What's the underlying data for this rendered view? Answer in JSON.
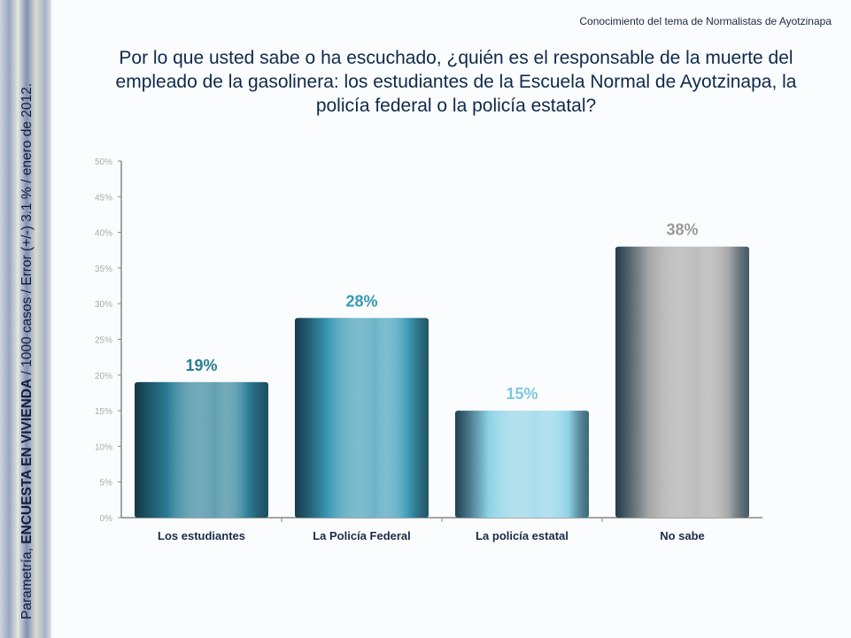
{
  "sidebar": {
    "source_prefix": "Parametría, ",
    "source_bold": "ENCUESTA EN VIVIENDA",
    "source_suffix": " / 1000 casos / Error (+/-) 3.1 % / enero de 2012."
  },
  "header": {
    "topic": "Conocimiento del tema de Normalistas de Ayotzinapa"
  },
  "chart_data": {
    "type": "bar",
    "title": "Por lo que usted sabe o ha escuchado, ¿quién es el responsable de la muerte del empleado de la gasolinera: los estudiantes de la Escuela Normal de Ayotzinapa, la policía federal o la policía estatal?",
    "categories": [
      "Los estudiantes",
      "La Policía Federal",
      "La policía estatal",
      "No sabe"
    ],
    "values": [
      19,
      28,
      15,
      38
    ],
    "data_labels": [
      "19%",
      "28%",
      "15%",
      "38%"
    ],
    "colors": [
      "#2b7f97",
      "#3a9ab5",
      "#8ed2e6",
      "#a6a6a6"
    ],
    "label_colors": [
      "#2a7d96",
      "#3598b6",
      "#7cc8de",
      "#9a9a9a"
    ],
    "ylim": [
      0,
      50
    ],
    "yticks": [
      "0%",
      "5%",
      "10%",
      "15%",
      "20%",
      "25%",
      "30%",
      "35%",
      "40%",
      "45%",
      "50%"
    ],
    "xlabel": "",
    "ylabel": "",
    "grid": false,
    "legend": "none"
  }
}
